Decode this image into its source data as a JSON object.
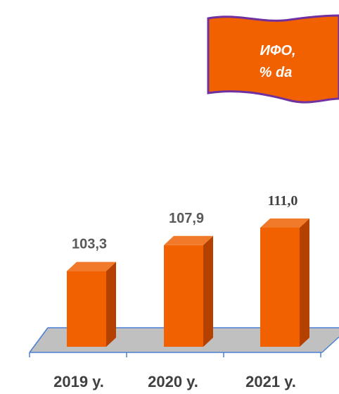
{
  "banner": {
    "line1": "ИФО,",
    "line2": "% da"
  },
  "colors": {
    "bar_front": "#F26100",
    "bar_side": "#B54100",
    "bar_top": "#F07A2A",
    "floor": "#C0C0C0",
    "floor_edge": "#4A7FD4",
    "banner_fill": "#F26100",
    "banner_border": "#7030A0"
  },
  "chart_data": {
    "type": "bar",
    "categories": [
      "2019 y.",
      "2020 y.",
      "2021 y."
    ],
    "values": [
      103.3,
      107.9,
      111.0
    ],
    "data_labels": [
      "103,3",
      "107,9",
      "111,0"
    ],
    "title": "",
    "xlabel": "",
    "ylabel": "",
    "grid": false,
    "style": "3d-column"
  }
}
